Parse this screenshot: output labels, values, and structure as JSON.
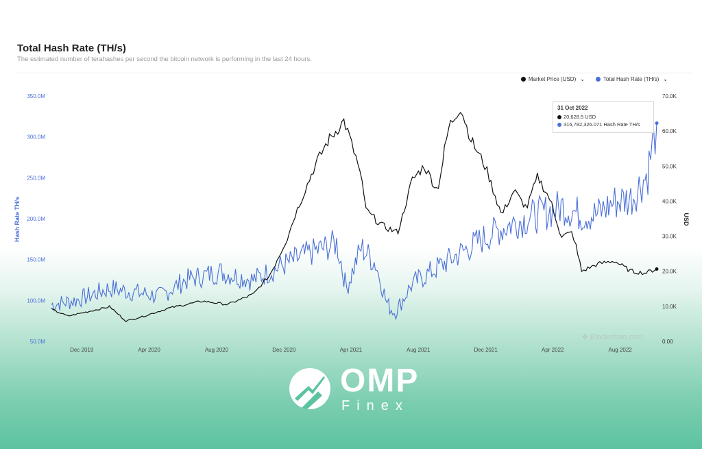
{
  "header": {
    "title": "Total Hash Rate (TH/s)",
    "subtitle": "The estimated number of terahashes per second the bitcoin network is performing in the last 24 hours."
  },
  "legend": {
    "items": [
      {
        "label": "Market Price (USD)",
        "color": "#111111"
      },
      {
        "label": "Total Hash Rate (TH/s)",
        "color": "#4a6fd8"
      }
    ]
  },
  "tooltip": {
    "date": "31 Oct 2022",
    "price": "20,628.5 USD",
    "hashrate": "316,782,326.071 Hash Rate TH/s"
  },
  "watermark": "Blockchain.com",
  "brand": {
    "name": "OMP",
    "sub": "Finex"
  },
  "colors": {
    "price": "#111111",
    "hashrate": "#4a6fd8",
    "accent_bg": "#5cc3a0"
  },
  "chart_data": {
    "type": "line",
    "x_axis": {
      "tick_labels": [
        "Dec 2019",
        "Apr 2020",
        "Aug 2020",
        "Dec 2020",
        "Apr 2021",
        "Aug 2021",
        "Dec 2021",
        "Apr 2022",
        "Aug 2022"
      ]
    },
    "y_left": {
      "label": "Hash Rate TH/s",
      "tick_labels": [
        "50.0M",
        "100.0M",
        "150.0M",
        "200.0M",
        "250.0M",
        "300.0M",
        "350.0M"
      ],
      "range": [
        50000000,
        350000000
      ]
    },
    "y_right": {
      "label": "USD",
      "tick_labels": [
        "0.00",
        "10.0K",
        "20.0K",
        "30.0K",
        "40.0K",
        "50.0K",
        "60.0K",
        "70.0K"
      ],
      "range": [
        0,
        70000
      ]
    },
    "series": [
      {
        "name": "Market Price (USD)",
        "axis": "right",
        "x": [
          "2019-11-01",
          "2019-12-01",
          "2020-01-01",
          "2020-02-15",
          "2020-03-15",
          "2020-04-15",
          "2020-06-01",
          "2020-08-01",
          "2020-09-15",
          "2020-11-01",
          "2020-12-01",
          "2020-12-31",
          "2021-01-15",
          "2021-02-20",
          "2021-03-15",
          "2021-04-14",
          "2021-05-10",
          "2021-05-25",
          "2021-06-22",
          "2021-07-20",
          "2021-08-15",
          "2021-09-06",
          "2021-09-30",
          "2021-10-20",
          "2021-11-10",
          "2021-12-01",
          "2021-12-25",
          "2022-01-24",
          "2022-02-15",
          "2022-03-10",
          "2022-03-30",
          "2022-04-20",
          "2022-05-12",
          "2022-06-01",
          "2022-06-18",
          "2022-07-15",
          "2022-08-15",
          "2022-09-15",
          "2022-10-10",
          "2022-10-31"
        ],
        "values": [
          9200,
          7200,
          8300,
          9900,
          5800,
          7100,
          9500,
          11500,
          10500,
          13500,
          19000,
          29000,
          36000,
          50000,
          57000,
          63000,
          50000,
          37000,
          33000,
          31000,
          46000,
          50000,
          43000,
          61000,
          67000,
          57000,
          50000,
          36000,
          43000,
          38000,
          47000,
          41000,
          30000,
          31000,
          20000,
          22000,
          23000,
          20000,
          19500,
          20628.5
        ]
      },
      {
        "name": "Total Hash Rate (TH/s)",
        "axis": "left",
        "x": [
          "2019-11-01",
          "2019-12-15",
          "2020-02-15",
          "2020-04-01",
          "2020-05-15",
          "2020-07-01",
          "2020-09-01",
          "2020-10-31",
          "2020-12-15",
          "2021-02-01",
          "2021-04-01",
          "2021-04-18",
          "2021-05-15",
          "2021-06-10",
          "2021-07-01",
          "2021-07-15",
          "2021-08-15",
          "2021-09-30",
          "2021-11-15",
          "2022-01-01",
          "2022-02-15",
          "2022-04-01",
          "2022-05-15",
          "2022-06-15",
          "2022-07-15",
          "2022-08-15",
          "2022-09-15",
          "2022-10-15",
          "2022-10-31"
        ],
        "values": [
          95000000,
          100000000,
          115000000,
          110000000,
          105000000,
          125000000,
          135000000,
          125000000,
          140000000,
          155000000,
          170000000,
          115000000,
          165000000,
          145000000,
          95000000,
          85000000,
          120000000,
          140000000,
          160000000,
          180000000,
          195000000,
          205000000,
          215000000,
          205000000,
          205000000,
          220000000,
          225000000,
          255000000,
          316782326.071
        ]
      }
    ],
    "grid": false,
    "legend_position": "top-right"
  }
}
